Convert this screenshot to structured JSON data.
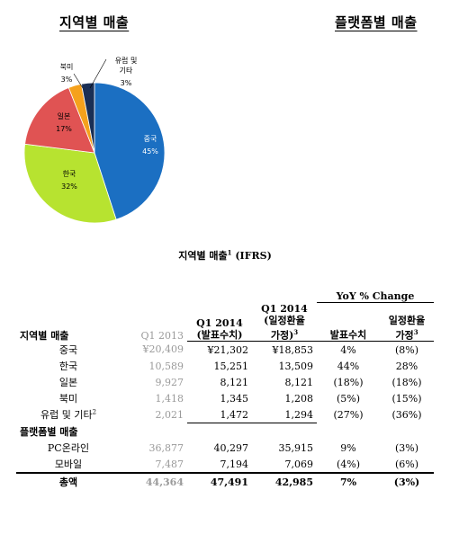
{
  "headings": {
    "left": "지역별 매출",
    "right": "플랫폼별 매출"
  },
  "chart_data": {
    "type": "pie",
    "slices": [
      {
        "label": "중국",
        "pct_label": "45%",
        "value": 45,
        "color": "#1b6fc2"
      },
      {
        "label": "한국",
        "pct_label": "32%",
        "value": 32,
        "color": "#b7e330"
      },
      {
        "label": "일본",
        "pct_label": "17%",
        "value": 17,
        "color": "#e05353"
      },
      {
        "label": "북미",
        "pct_label": "3%",
        "value": 3,
        "color": "#f5a11c"
      },
      {
        "label": "유럽 및\n기타",
        "pct_label": "3%",
        "value": 3,
        "color": "#1a2f55"
      }
    ]
  },
  "table": {
    "title": "지역별 매출",
    "title_sup": "1",
    "title_suffix": " (IFRS)",
    "yoy_header": "YoY % Change",
    "headers": {
      "label": "지역별 매출",
      "c1": "Q1 2013",
      "c2_l1": "Q1 2014",
      "c2_l2": "(발표수치)",
      "c3_l1": "Q1 2014",
      "c3_l2": "(일정환율",
      "c3_l3": "가정)",
      "c3_sup": "3",
      "c4": "발표수치",
      "c5_l1": "일정환율",
      "c5_l2": "가정",
      "c5_sup": "3"
    },
    "regions": [
      {
        "label": "중국",
        "sup": "",
        "q1_2013": "¥20,409",
        "q1_2014": "¥21,302",
        "q1_2014_cc": "¥18,853",
        "yoy": "4%",
        "yoy_cc": "(8%)"
      },
      {
        "label": "한국",
        "sup": "",
        "q1_2013": "10,589",
        "q1_2014": "15,251",
        "q1_2014_cc": "13,509",
        "yoy": "44%",
        "yoy_cc": "28%"
      },
      {
        "label": "일본",
        "sup": "",
        "q1_2013": "9,927",
        "q1_2014": "8,121",
        "q1_2014_cc": "8,121",
        "yoy": "(18%)",
        "yoy_cc": "(18%)"
      },
      {
        "label": "북미",
        "sup": "",
        "q1_2013": "1,418",
        "q1_2014": "1,345",
        "q1_2014_cc": "1,208",
        "yoy": "(5%)",
        "yoy_cc": "(15%)"
      },
      {
        "label": "유럽 및 기타",
        "sup": "2",
        "q1_2013": "2,021",
        "q1_2014": "1,472",
        "q1_2014_cc": "1,294",
        "yoy": "(27%)",
        "yoy_cc": "(36%)"
      }
    ],
    "platform_section": "플랫폼별 매출",
    "platforms": [
      {
        "label": "PC온라인",
        "q1_2013": "36,877",
        "q1_2014": "40,297",
        "q1_2014_cc": "35,915",
        "yoy": "9%",
        "yoy_cc": "(3%)"
      },
      {
        "label": "모바일",
        "q1_2013": "7,487",
        "q1_2014": "7,194",
        "q1_2014_cc": "7,069",
        "yoy": "(4%)",
        "yoy_cc": "(6%)"
      }
    ],
    "total": {
      "label": "총액",
      "q1_2013": "44,364",
      "q1_2014": "47,491",
      "q1_2014_cc": "42,985",
      "yoy": "7%",
      "yoy_cc": "(3%)"
    }
  }
}
